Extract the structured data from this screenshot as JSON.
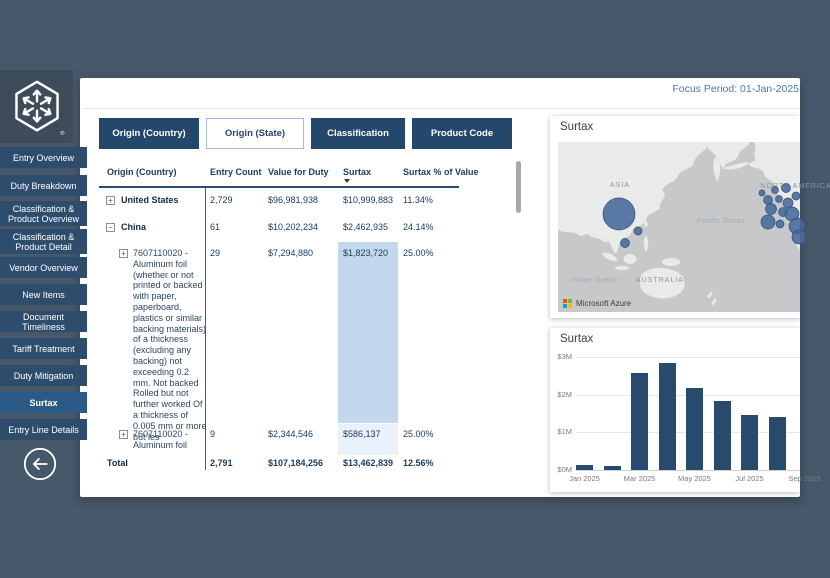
{
  "header": {
    "focus_period": "Focus Period: 01-Jan-2025"
  },
  "sidebar": {
    "items": [
      {
        "label": "Entry Overview",
        "active": false
      },
      {
        "label": "Duty Breakdown",
        "active": false
      },
      {
        "label": "Classification & Product Overview",
        "active": false
      },
      {
        "label": "Classification & Product Detail",
        "active": false
      },
      {
        "label": "Vendor Overview",
        "active": false
      },
      {
        "label": "New Items",
        "active": false
      },
      {
        "label": "Document Timeliness",
        "active": false
      },
      {
        "label": "Tariff Treatment",
        "active": false
      },
      {
        "label": "Duty Mitigation",
        "active": false
      },
      {
        "label": "Surtax",
        "active": true
      },
      {
        "label": "Entry Line Details",
        "active": false
      }
    ],
    "back_icon": "arrow-left-circle-icon"
  },
  "tabs": [
    {
      "label": "Origin (Country)",
      "variant": "solid"
    },
    {
      "label": "Origin (State)",
      "variant": "outline"
    },
    {
      "label": "Classification",
      "variant": "solid"
    },
    {
      "label": "Product Code",
      "variant": "solid"
    }
  ],
  "table": {
    "columns": [
      "Origin (Country)",
      "Entry Count",
      "Value for Duty",
      "Surtax",
      "Surtax % of Value"
    ],
    "sorted_by": "Surtax",
    "sort_direction": "desc",
    "rows": [
      {
        "expander": "+",
        "origin": "United States",
        "entry_count": "2,729",
        "value_for_duty": "$96,981,938",
        "surtax": "$10,999,883",
        "surtax_pct": "11.34%"
      },
      {
        "expander": "−",
        "origin": "China",
        "entry_count": "61",
        "value_for_duty": "$10,202,234",
        "surtax": "$2,462,935",
        "surtax_pct": "24.14%"
      },
      {
        "expander": "+",
        "origin": "7607110020 - Aluminum foil (whether or not printed or backed with paper, paperboard, plastics or similar backing materials) of a thickness (excluding any backing) not exceeding 0.2 mm. Not backed Rolled but not further worked Of a thickness of 0.005 mm or more but les",
        "entry_count": "29",
        "value_for_duty": "$7,294,880",
        "surtax": "$1,823,720",
        "surtax_pct": "25.00%",
        "surtax_highlight": "#c3d8ed"
      },
      {
        "expander": "+",
        "origin": "7607110020 - Aluminum foil",
        "entry_count": "9",
        "value_for_duty": "$2,344,546",
        "surtax": "$586,137",
        "surtax_pct": "25.00%",
        "surtax_highlight": "#e9f2fa"
      },
      {
        "origin": "Total",
        "entry_count": "2,791",
        "value_for_duty": "$107,184,256",
        "surtax": "$13,462,839",
        "surtax_pct": "12.56%"
      }
    ]
  },
  "map_card": {
    "title": "Surtax",
    "attribution": "Microsoft Azure"
  },
  "chart_card": {
    "title": "Surtax"
  },
  "chart_data": [
    {
      "type": "scatter",
      "subtype": "bubble-map",
      "title": "Surtax",
      "legend_position": "none",
      "labels": [
        {
          "text": "ASIA",
          "x": 62,
          "y": 45,
          "type": "continent"
        },
        {
          "text": "NORTH AMERICA",
          "x": 238,
          "y": 46,
          "type": "continent"
        },
        {
          "text": "AUSTRALIA",
          "x": 102,
          "y": 140,
          "type": "continent"
        },
        {
          "text": "Pacific Ocean",
          "x": 163,
          "y": 81,
          "type": "ocean"
        },
        {
          "text": "Indian Ocean",
          "x": 36,
          "y": 140,
          "type": "ocean"
        }
      ],
      "bubbles": [
        {
          "x": 61,
          "y": 72,
          "r": 16
        },
        {
          "x": 80,
          "y": 89,
          "r": 4
        },
        {
          "x": 67,
          "y": 101,
          "r": 4.5
        },
        {
          "x": 204,
          "y": 51,
          "r": 3
        },
        {
          "x": 217,
          "y": 48,
          "r": 3.5
        },
        {
          "x": 228,
          "y": 46,
          "r": 4.5
        },
        {
          "x": 210,
          "y": 58,
          "r": 4.5
        },
        {
          "x": 221,
          "y": 57,
          "r": 3.5
        },
        {
          "x": 230,
          "y": 61,
          "r": 5
        },
        {
          "x": 238,
          "y": 54,
          "r": 4
        },
        {
          "x": 213,
          "y": 67,
          "r": 5.5
        },
        {
          "x": 225,
          "y": 70,
          "r": 4.5
        },
        {
          "x": 234,
          "y": 72,
          "r": 7
        },
        {
          "x": 210,
          "y": 80,
          "r": 7
        },
        {
          "x": 222,
          "y": 82,
          "r": 4
        },
        {
          "x": 239,
          "y": 84,
          "r": 8
        },
        {
          "x": 241,
          "y": 95,
          "r": 7
        }
      ]
    },
    {
      "type": "bar",
      "title": "Surtax",
      "x": [
        "Jan 2025",
        "Feb 2025",
        "Mar 2025",
        "Apr 2025",
        "May 2025",
        "Jun 2025",
        "Jul 2025",
        "Aug 2025"
      ],
      "values_musd": [
        0.13,
        0.1,
        2.58,
        2.84,
        2.18,
        1.82,
        1.47,
        1.42
      ],
      "ylim": [
        0,
        3
      ],
      "ytick_labels": [
        "$0M",
        "$1M",
        "$2M",
        "$3M"
      ],
      "xticks": [
        {
          "label": "Jan 2025",
          "index": 0
        },
        {
          "label": "Mar 2025",
          "index": 2
        },
        {
          "label": "May 2025",
          "index": 4
        },
        {
          "label": "Jul 2025",
          "index": 6
        },
        {
          "label": "Sep 2025",
          "index": 8
        }
      ],
      "grid": true
    }
  ],
  "colors": {
    "canvas": "#47586a",
    "nav_item": "#2e4d6d",
    "nav_active": "#2b5a86",
    "tab_navy": "#24486b",
    "table_text": "#1e3c60",
    "bar": "#274a6d",
    "bubble": "#47699b",
    "highlight_strong": "#c3d8ed",
    "highlight_light": "#e9f2fa",
    "ms_red": "#f25022",
    "ms_green": "#7fba00",
    "ms_blue": "#00a4ef",
    "ms_yellow": "#ffb900"
  }
}
